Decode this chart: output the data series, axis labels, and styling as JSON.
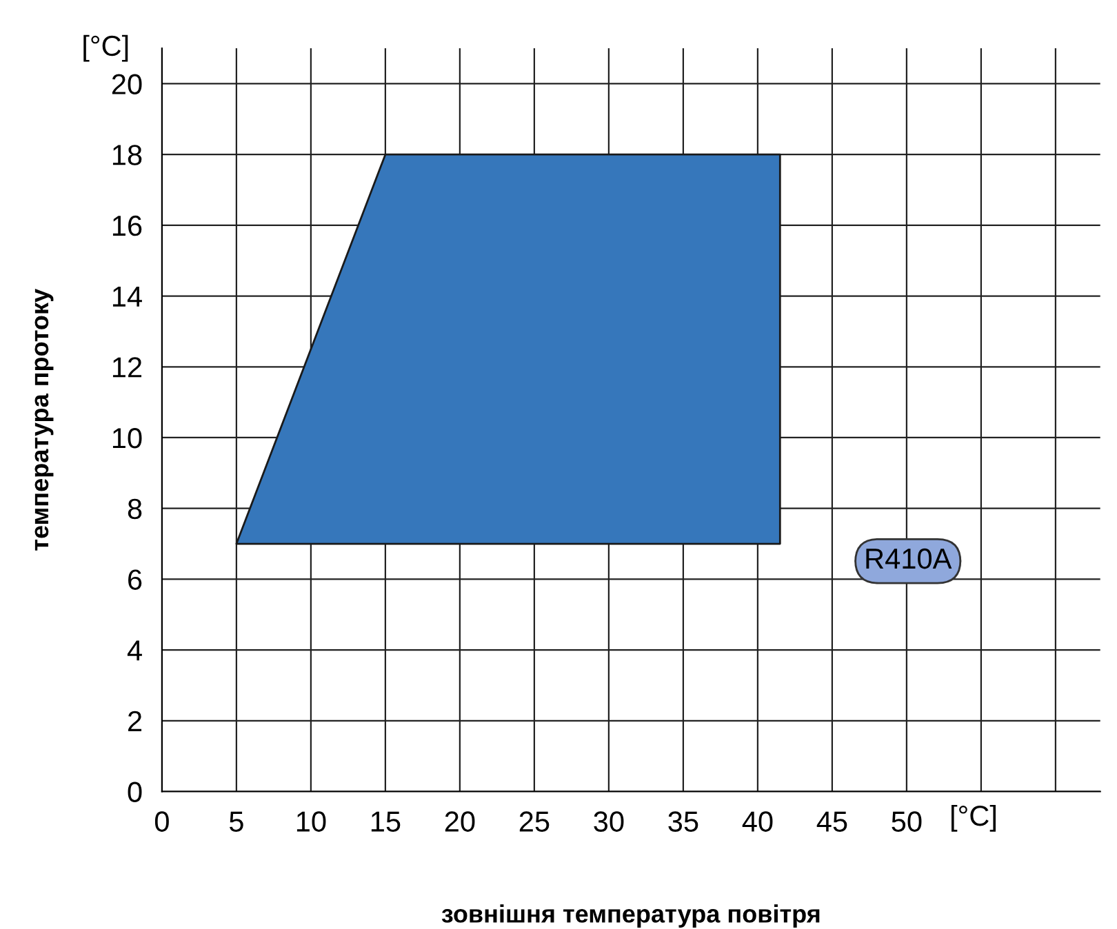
{
  "chart_data": {
    "type": "area",
    "xlabel": "зовнішня температура повітря",
    "ylabel": "температура протоку",
    "series": [
      {
        "color": "#3677bb",
        "x": [
          5,
          15,
          41.5,
          41.5
        ],
        "values": [
          7,
          18,
          18,
          7
        ]
      }
    ],
    "xlim": [
      0,
      63
    ],
    "xticks": [
      0,
      5,
      10,
      15,
      20,
      25,
      30,
      35,
      40,
      45,
      50,
      {
        "value": 55,
        "label": null
      },
      {
        "value": 60,
        "label": null
      }
    ],
    "ylim": [
      0,
      21
    ],
    "yticks": [
      0,
      2,
      4,
      6,
      8,
      10,
      12,
      14,
      16,
      18,
      20
    ],
    "grid": true,
    "annotations": [
      "[°C]",
      "[°C]",
      "R410A"
    ]
  }
}
